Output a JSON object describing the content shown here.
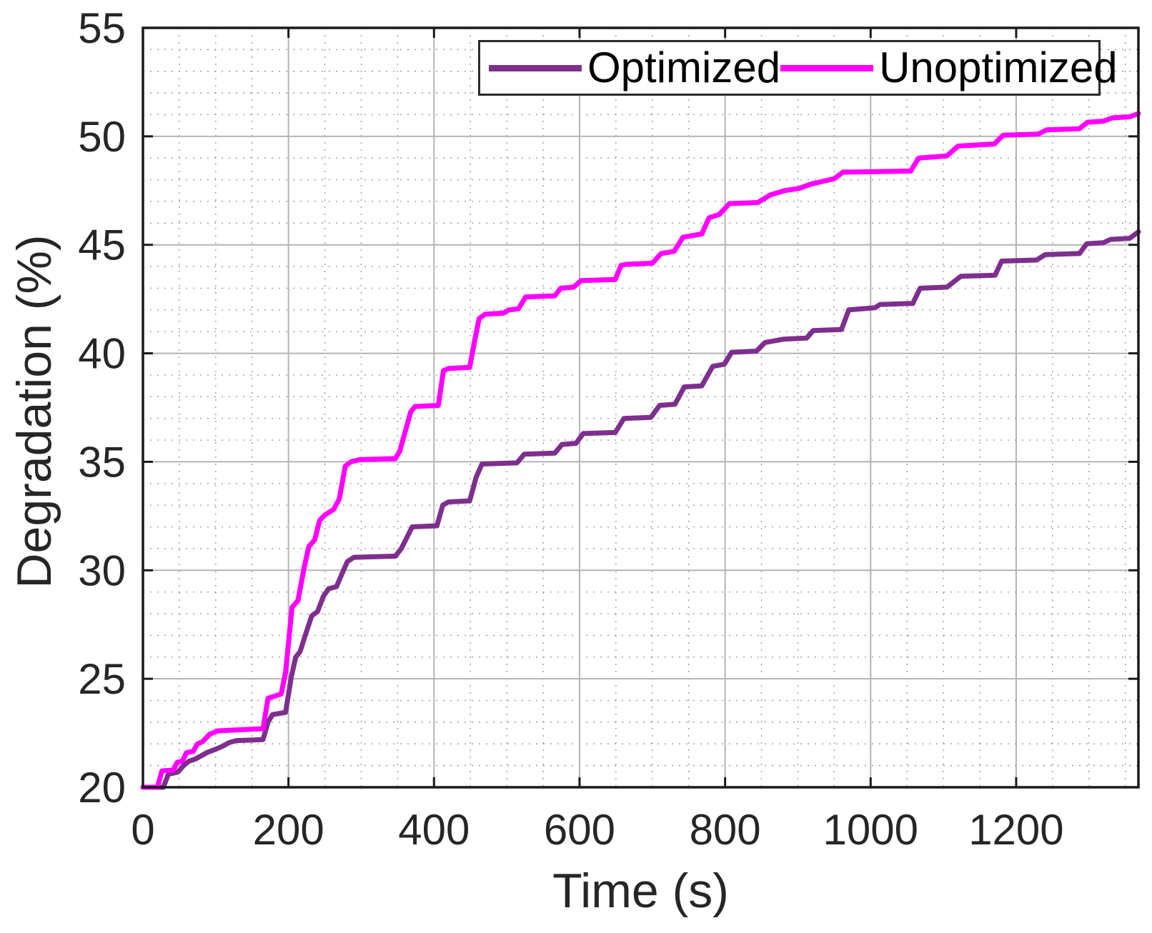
{
  "figure": {
    "background": "#ffffff",
    "axis_color": "#1a1a1a",
    "tick_label_color": "#262626",
    "major_grid_color": "#b4b4b4",
    "minor_grid_color": "#9c9c9c"
  },
  "chart_data": {
    "type": "line",
    "title": "",
    "xlabel": "Time (s)",
    "ylabel": "Degradation (%)",
    "xlim": [
      0,
      1368
    ],
    "ylim": [
      20,
      55
    ],
    "xticks": [
      0,
      200,
      400,
      600,
      800,
      1000,
      1200
    ],
    "yticks": [
      20,
      25,
      30,
      35,
      40,
      45,
      50,
      55
    ],
    "minor_x_step": 50,
    "minor_y_step": 1,
    "grid": "major solid, minor dotted, box on, ticks on all four sides",
    "legend_position": "top inside, horizontal",
    "series": [
      {
        "name": "Optimized",
        "color": "#7E2F8E",
        "points": [
          [
            0,
            20
          ],
          [
            28,
            20
          ],
          [
            35,
            20.6
          ],
          [
            48,
            20.7
          ],
          [
            56,
            21.0
          ],
          [
            63,
            21.2
          ],
          [
            72,
            21.3
          ],
          [
            80,
            21.45
          ],
          [
            88,
            21.6
          ],
          [
            100,
            21.75
          ],
          [
            110,
            21.9
          ],
          [
            118,
            22.05
          ],
          [
            128,
            22.15
          ],
          [
            165,
            22.2
          ],
          [
            172,
            23.0
          ],
          [
            178,
            23.35
          ],
          [
            196,
            23.45
          ],
          [
            204,
            25.1
          ],
          [
            210,
            26.0
          ],
          [
            216,
            26.25
          ],
          [
            223,
            27.0
          ],
          [
            232,
            27.9
          ],
          [
            240,
            28.1
          ],
          [
            248,
            28.8
          ],
          [
            255,
            29.15
          ],
          [
            266,
            29.25
          ],
          [
            273,
            29.8
          ],
          [
            281,
            30.4
          ],
          [
            290,
            30.6
          ],
          [
            347,
            30.65
          ],
          [
            355,
            31.0
          ],
          [
            370,
            32.0
          ],
          [
            404,
            32.05
          ],
          [
            412,
            33.0
          ],
          [
            420,
            33.15
          ],
          [
            449,
            33.2
          ],
          [
            458,
            34.3
          ],
          [
            466,
            34.9
          ],
          [
            514,
            34.95
          ],
          [
            524,
            35.35
          ],
          [
            566,
            35.4
          ],
          [
            576,
            35.8
          ],
          [
            595,
            35.85
          ],
          [
            605,
            36.3
          ],
          [
            649,
            36.35
          ],
          [
            661,
            37.0
          ],
          [
            698,
            37.05
          ],
          [
            710,
            37.6
          ],
          [
            731,
            37.65
          ],
          [
            744,
            38.45
          ],
          [
            768,
            38.5
          ],
          [
            783,
            39.4
          ],
          [
            799,
            39.5
          ],
          [
            809,
            40.05
          ],
          [
            843,
            40.1
          ],
          [
            855,
            40.5
          ],
          [
            880,
            40.65
          ],
          [
            912,
            40.7
          ],
          [
            921,
            41.05
          ],
          [
            960,
            41.1
          ],
          [
            970,
            42.0
          ],
          [
            1006,
            42.1
          ],
          [
            1013,
            42.25
          ],
          [
            1058,
            42.3
          ],
          [
            1068,
            43.0
          ],
          [
            1105,
            43.05
          ],
          [
            1124,
            43.55
          ],
          [
            1171,
            43.6
          ],
          [
            1180,
            44.25
          ],
          [
            1228,
            44.3
          ],
          [
            1240,
            44.55
          ],
          [
            1287,
            44.6
          ],
          [
            1297,
            45.05
          ],
          [
            1320,
            45.1
          ],
          [
            1330,
            45.25
          ],
          [
            1356,
            45.3
          ],
          [
            1368,
            45.6
          ]
        ]
      },
      {
        "name": "Unoptimized",
        "color": "#FF00FF",
        "points": [
          [
            0,
            20
          ],
          [
            20,
            20
          ],
          [
            26,
            20.75
          ],
          [
            42,
            20.8
          ],
          [
            47,
            21.15
          ],
          [
            54,
            21.2
          ],
          [
            60,
            21.6
          ],
          [
            69,
            21.65
          ],
          [
            75,
            22.0
          ],
          [
            82,
            22.1
          ],
          [
            92,
            22.45
          ],
          [
            103,
            22.6
          ],
          [
            165,
            22.7
          ],
          [
            172,
            24.1
          ],
          [
            190,
            24.3
          ],
          [
            196,
            25.3
          ],
          [
            205,
            28.3
          ],
          [
            213,
            28.6
          ],
          [
            222,
            30.2
          ],
          [
            228,
            31.1
          ],
          [
            236,
            31.4
          ],
          [
            243,
            32.3
          ],
          [
            250,
            32.55
          ],
          [
            262,
            32.8
          ],
          [
            270,
            33.3
          ],
          [
            278,
            34.8
          ],
          [
            286,
            35.0
          ],
          [
            298,
            35.1
          ],
          [
            347,
            35.15
          ],
          [
            353,
            35.5
          ],
          [
            368,
            37.3
          ],
          [
            374,
            37.55
          ],
          [
            406,
            37.6
          ],
          [
            413,
            39.2
          ],
          [
            420,
            39.3
          ],
          [
            449,
            39.35
          ],
          [
            456,
            40.6
          ],
          [
            462,
            41.6
          ],
          [
            470,
            41.8
          ],
          [
            495,
            41.85
          ],
          [
            503,
            42.0
          ],
          [
            516,
            42.05
          ],
          [
            526,
            42.6
          ],
          [
            566,
            42.65
          ],
          [
            574,
            43.0
          ],
          [
            592,
            43.05
          ],
          [
            602,
            43.35
          ],
          [
            649,
            43.4
          ],
          [
            657,
            44.05
          ],
          [
            664,
            44.1
          ],
          [
            700,
            44.15
          ],
          [
            712,
            44.6
          ],
          [
            730,
            44.7
          ],
          [
            742,
            45.35
          ],
          [
            768,
            45.5
          ],
          [
            778,
            46.25
          ],
          [
            792,
            46.4
          ],
          [
            806,
            46.9
          ],
          [
            845,
            46.95
          ],
          [
            862,
            47.3
          ],
          [
            882,
            47.5
          ],
          [
            902,
            47.6
          ],
          [
            918,
            47.8
          ],
          [
            950,
            48.05
          ],
          [
            962,
            48.35
          ],
          [
            1055,
            48.4
          ],
          [
            1066,
            49.0
          ],
          [
            1105,
            49.1
          ],
          [
            1120,
            49.55
          ],
          [
            1170,
            49.65
          ],
          [
            1182,
            50.05
          ],
          [
            1230,
            50.1
          ],
          [
            1242,
            50.3
          ],
          [
            1287,
            50.35
          ],
          [
            1298,
            50.65
          ],
          [
            1320,
            50.7
          ],
          [
            1332,
            50.85
          ],
          [
            1356,
            50.9
          ],
          [
            1368,
            51.05
          ]
        ]
      }
    ]
  }
}
